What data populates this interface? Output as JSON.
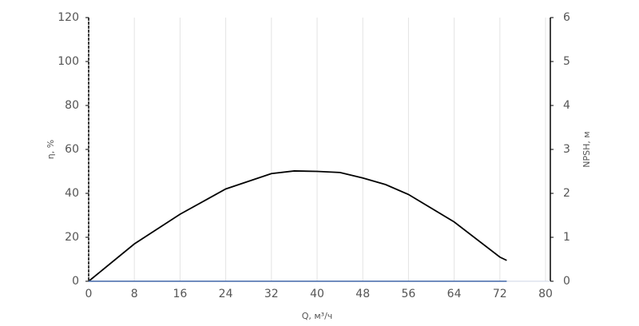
{
  "chart_data": {
    "type": "line",
    "x": [
      0,
      8,
      16,
      24,
      32,
      36,
      40,
      44,
      48,
      52,
      56,
      64,
      72,
      73.2
    ],
    "series": [
      {
        "color": "#000000",
        "values": [
          0,
          17,
          30.5,
          42,
          49,
          50.2,
          50,
          49.5,
          47,
          44,
          39.5,
          27,
          11,
          9.5
        ]
      },
      {
        "color": "#5b7bb5",
        "axis": "y2",
        "values": [
          0,
          0,
          0,
          0,
          0,
          0,
          0,
          0,
          0,
          0,
          0,
          0,
          0,
          0
        ]
      }
    ],
    "xlabel": "Q, м³/ч",
    "ylabel": "η, %",
    "y2label": "NPSH, м",
    "xlim": [
      0,
      80
    ],
    "xticks": [
      0,
      8,
      16,
      24,
      32,
      40,
      48,
      56,
      64,
      72,
      80
    ],
    "ylim": [
      0,
      120
    ],
    "yticks": [
      0,
      20,
      40,
      60,
      80,
      100,
      120
    ],
    "y2lim": [
      0,
      6
    ],
    "y2ticks": [
      0,
      1,
      2,
      3,
      4,
      5,
      6
    ],
    "grid": true
  }
}
